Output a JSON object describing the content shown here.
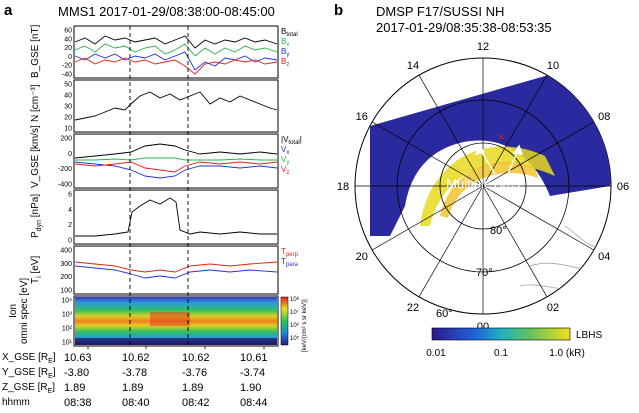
{
  "panel_a": {
    "letter": "a",
    "title": "MMS1 2017-01-29/08:38:00-08:45:00",
    "panels": [
      {
        "ylabel": "B_GSE",
        "unit": "[nT]",
        "ticks": [
          "60",
          "40",
          "20",
          "0",
          "-20",
          "-40"
        ],
        "legend": [
          {
            "text": "B",
            "sub": "total",
            "color": "#000000"
          },
          {
            "text": "B",
            "sub": "x",
            "color": "#2ab24a"
          },
          {
            "text": "B",
            "sub": "y",
            "color": "#2030e0"
          },
          {
            "text": "B",
            "sub": "z",
            "color": "#e02020"
          }
        ]
      },
      {
        "ylabel": "N",
        "unit": "[cm⁻³]",
        "ticks": [
          "50",
          "40",
          "30",
          "20",
          "10"
        ],
        "legend": []
      },
      {
        "ylabel": "V_GSE",
        "unit": "[km/s]",
        "ticks": [
          "200",
          "0",
          "-200",
          "-400"
        ],
        "legend": [
          {
            "text": "|V",
            "sub": "total",
            "color": "#000000",
            "suffix": "|"
          },
          {
            "text": "V",
            "sub": "x",
            "color": "#2030e0"
          },
          {
            "text": "V",
            "sub": "y",
            "color": "#2ab24a"
          },
          {
            "text": "V",
            "sub": "z",
            "color": "#e02020"
          }
        ]
      },
      {
        "ylabel": "P",
        "ylabel_sub": "dyn",
        "unit": "[nPa]",
        "ticks": [
          "6",
          "4",
          "2",
          "0"
        ],
        "legend": []
      },
      {
        "ylabel": "T",
        "ylabel_sub": "i",
        "unit": "[eV]",
        "ticks": [
          "400",
          "300",
          "200",
          "100"
        ],
        "legend": [
          {
            "text": "T",
            "sub": "perp",
            "color": "#e02020"
          },
          {
            "text": "T",
            "sub": "para",
            "color": "#2030e0"
          }
        ]
      },
      {
        "ylabel": "Ion",
        "ylabel2": "omni spec",
        "unit": "[eV]",
        "ticks": [
          "10⁴",
          "10³",
          "10²",
          "10¹"
        ],
        "legend": [],
        "colorbar_ticks": [
          "10⁸",
          "10⁷",
          "10⁶",
          "10⁵"
        ],
        "colorbar_label": "[keV/(cm² s sr keV)]"
      }
    ],
    "ephemeris": {
      "rows": [
        {
          "label": "X_GSE [R",
          "sub": "E",
          "close": "]",
          "values": [
            "10.63",
            "10.62",
            "10.62",
            "10.61"
          ]
        },
        {
          "label": "Y_GSE [R",
          "sub": "E",
          "close": "]",
          "values": [
            "-3.80",
            "-3.78",
            "-3.76",
            "-3.74"
          ]
        },
        {
          "label": "Z_GSE [R",
          "sub": "E",
          "close": "]",
          "values": [
            "1.89",
            "1.89",
            "1.89",
            "1.90"
          ]
        },
        {
          "label": "hhmm",
          "sub": "",
          "close": "",
          "values": [
            "08:38",
            "08:40",
            "08:42",
            "08:44"
          ]
        }
      ]
    }
  },
  "panel_b": {
    "letter": "b",
    "title_line1": "DMSP F17/SUSSI  NH",
    "title_line2": "2017-01-29/08:35:38-08:53:35",
    "mlt_labels": [
      "12",
      "14",
      "16",
      "18",
      "20",
      "22",
      "00",
      "02",
      "04",
      "06",
      "08",
      "10"
    ],
    "lat_labels": [
      "80°",
      "70°",
      "60°"
    ],
    "annotation": "Multiple Arcs",
    "colorbar": {
      "label": "LBHS",
      "ticks": [
        "0.01",
        "0.1",
        "1.0 (kR)"
      ]
    }
  }
}
